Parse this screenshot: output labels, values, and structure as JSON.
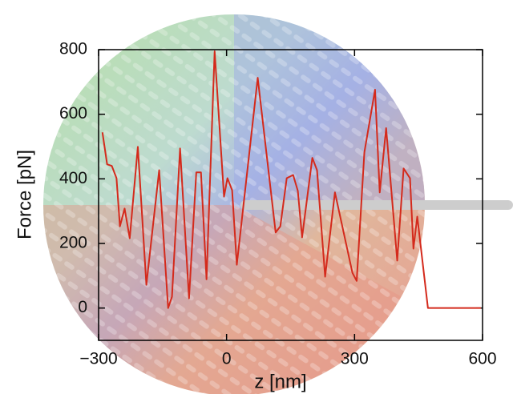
{
  "chart_data": {
    "type": "line",
    "x_label": "z [nm]",
    "y_label": "Force [pN]",
    "x": [
      -291,
      -280,
      -269,
      -258,
      -250,
      -239,
      -227,
      -208,
      -188,
      -158,
      -137,
      -128,
      -109,
      -88,
      -71,
      -60,
      -47,
      -28,
      -6,
      2,
      13,
      24,
      73,
      115,
      126,
      141,
      156,
      167,
      177,
      201,
      212,
      231,
      254,
      295,
      305,
      323,
      348,
      359,
      374,
      400,
      415,
      430,
      438,
      447,
      472,
      596
    ],
    "values": [
      544,
      445,
      440,
      402,
      253,
      308,
      216,
      499,
      72,
      427,
      0,
      35,
      494,
      30,
      420,
      420,
      89,
      795,
      345,
      402,
      365,
      134,
      713,
      234,
      253,
      402,
      412,
      363,
      219,
      465,
      427,
      97,
      358,
      109,
      84,
      482,
      676,
      358,
      557,
      147,
      432,
      402,
      184,
      283,
      0,
      0
    ],
    "color": "#d42a1c",
    "xlim": [
      -300,
      600
    ],
    "ylim": [
      -100,
      800
    ],
    "xticks": [
      {
        "value": -300,
        "label": "−300"
      },
      0,
      300,
      600
    ],
    "yticks": [
      0,
      200,
      400,
      600,
      800
    ]
  }
}
